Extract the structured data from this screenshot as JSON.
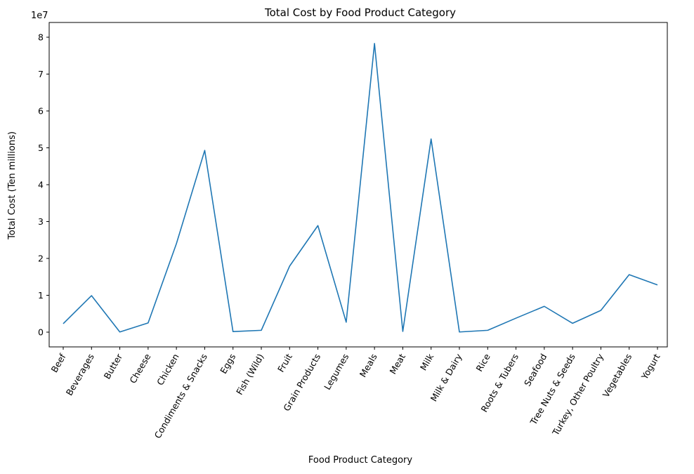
{
  "chart_data": {
    "type": "line",
    "title": "Total Cost by Food Product Category",
    "xlabel": "Food Product Category",
    "ylabel": "Total Cost (Ten millions)",
    "y_scale_label": "1e7",
    "y_scale": 10000000,
    "ylim": [
      -4000000,
      84000000
    ],
    "y_ticks": [
      0,
      10000000,
      20000000,
      30000000,
      40000000,
      50000000,
      60000000,
      70000000,
      80000000
    ],
    "y_tick_labels": [
      "0",
      "1",
      "2",
      "3",
      "4",
      "5",
      "6",
      "7",
      "8"
    ],
    "grid": false,
    "line_color": "#1f77b4",
    "categories": [
      "Beef",
      "Beverages",
      "Butter",
      "Cheese",
      "Chicken",
      "Condiments & Snacks",
      "Eggs",
      "Fish (Wild)",
      "Fruit",
      "Grain Products",
      "Legumes",
      "Meals",
      "Meat",
      "Milk",
      "Milk & Dairy",
      "Rice",
      "Roots & Tubers",
      "Seafood",
      "Tree Nuts & Seeds",
      "Turkey, Other Poultry",
      "Vegetables",
      "Yogurt"
    ],
    "series": [
      {
        "values": [
          2300000,
          9900000,
          50000,
          2500000,
          24000000,
          49300000,
          150000,
          500000,
          17900000,
          28900000,
          2700000,
          78300000,
          200000,
          52400000,
          50000,
          500000,
          3800000,
          7000000,
          2400000,
          5900000,
          15600000,
          12800000
        ]
      }
    ]
  }
}
